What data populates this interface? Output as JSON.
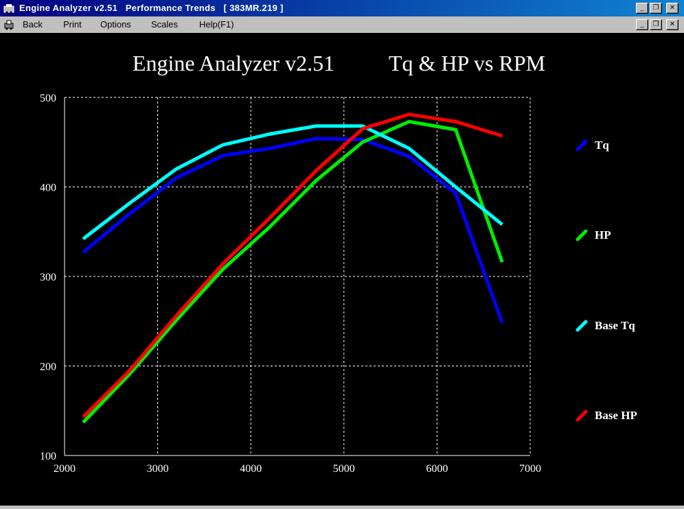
{
  "window": {
    "title": "Engine Analyzer v2.51   Performance Trends   [ 383MR.219 ]",
    "controls": [
      "_",
      "❐",
      "✕"
    ]
  },
  "menu": {
    "items": [
      "Back",
      "Print",
      "Options",
      "Scales",
      "Help(F1)"
    ]
  },
  "chart_data": {
    "type": "line",
    "title_left": "Engine Analyzer v2.51",
    "title_right": "Tq & HP vs RPM",
    "xlim": [
      2000,
      7000
    ],
    "ylim": [
      100,
      500
    ],
    "x_ticks": [
      2000,
      3000,
      4000,
      5000,
      6000,
      7000
    ],
    "y_ticks": [
      100,
      200,
      300,
      400,
      500
    ],
    "grid": true,
    "legend_position": "right",
    "x": [
      2200,
      2700,
      3200,
      3700,
      4200,
      4700,
      5200,
      5700,
      6200,
      6700
    ],
    "series": [
      {
        "name": "Tq",
        "color": "#0000ff",
        "values": [
          327,
          370,
          410,
          435,
          443,
          454,
          453,
          434,
          393,
          248
        ]
      },
      {
        "name": "HP",
        "color": "#00ee00",
        "values": [
          137,
          191,
          251,
          308,
          355,
          407,
          450,
          473,
          464,
          316
        ]
      },
      {
        "name": "Base Tq",
        "color": "#00ffff",
        "values": [
          342,
          382,
          420,
          447,
          459,
          468,
          468,
          443,
          400,
          358
        ]
      },
      {
        "name": "Base HP",
        "color": "#ff0000",
        "values": [
          143,
          195,
          256,
          314,
          365,
          418,
          465,
          481,
          473,
          457
        ]
      }
    ]
  }
}
